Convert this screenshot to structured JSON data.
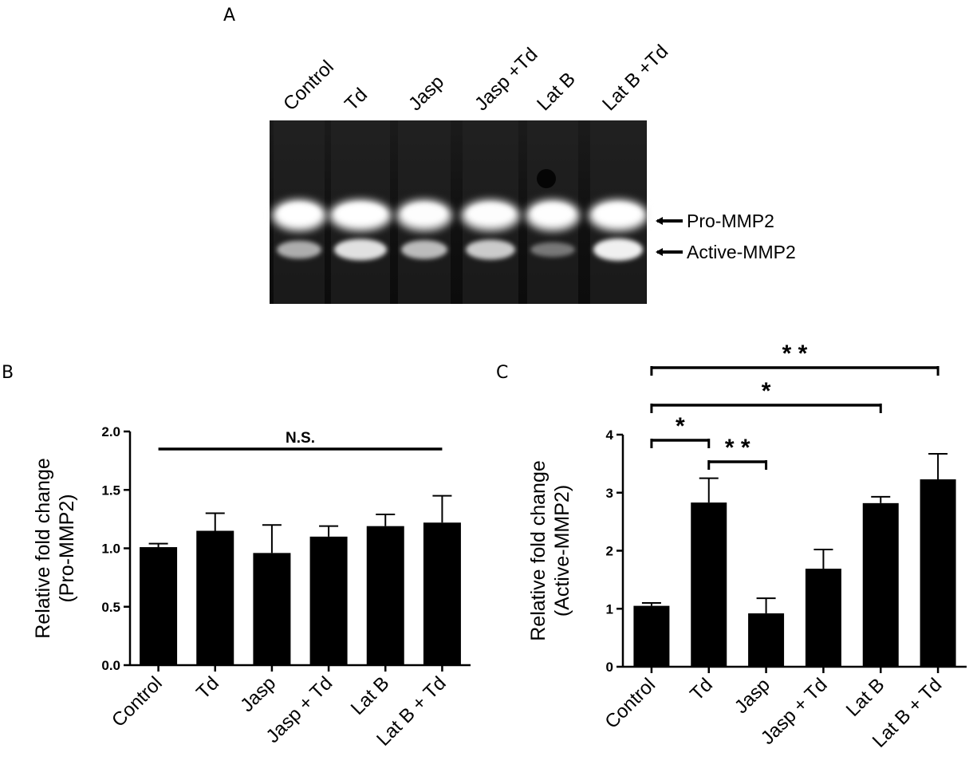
{
  "panels": {
    "a": "A",
    "b": "B",
    "c": "C"
  },
  "gel": {
    "lanes": [
      "Control",
      "Td",
      "Jasp",
      "Jasp +Td",
      "Lat B",
      "Lat B +Td"
    ],
    "bands": [
      "Pro-MMP2",
      "Active-MMP2"
    ],
    "pro_intensity": [
      1.0,
      1.0,
      0.95,
      0.95,
      0.97,
      1.0
    ],
    "active_intensity": [
      0.55,
      0.9,
      0.65,
      0.75,
      0.2,
      1.0
    ]
  },
  "chart_data": [
    {
      "id": "B",
      "type": "bar",
      "categories": [
        "Control",
        "Td",
        "Jasp",
        "Jasp + Td",
        "Lat B",
        "Lat B + Td"
      ],
      "values": [
        1.01,
        1.15,
        0.96,
        1.1,
        1.19,
        1.22
      ],
      "errors": [
        0.03,
        0.15,
        0.24,
        0.09,
        0.1,
        0.23
      ],
      "ylabel": "Relative fold change",
      "ylabel2": "(Pro-MMP2)",
      "ylim": [
        0,
        2.0
      ],
      "yticks": [
        "0.0",
        "0.5",
        "1.0",
        "1.5",
        "2.0"
      ],
      "annotations": [
        {
          "from": "Control",
          "to": "Lat B + Td",
          "text": "N.S."
        }
      ]
    },
    {
      "id": "C",
      "type": "bar",
      "categories": [
        "Control",
        "Td",
        "Jasp",
        "Jasp + Td",
        "Lat B",
        "Lat B + Td"
      ],
      "values": [
        1.05,
        2.83,
        0.92,
        1.69,
        2.82,
        3.23
      ],
      "errors": [
        0.05,
        0.42,
        0.26,
        0.33,
        0.11,
        0.44
      ],
      "ylabel": "Relative fold change",
      "ylabel2": "(Active-MMP2)",
      "ylim": [
        0,
        4
      ],
      "yticks": [
        "0",
        "1",
        "2",
        "3",
        "4"
      ],
      "annotations": [
        {
          "from": "Control",
          "to": "Td",
          "text": "*"
        },
        {
          "from": "Td",
          "to": "Jasp",
          "text": "* *"
        },
        {
          "from": "Control",
          "to": "Lat B",
          "text": "*"
        },
        {
          "from": "Control",
          "to": "Lat B + Td",
          "text": "* *"
        }
      ]
    }
  ]
}
